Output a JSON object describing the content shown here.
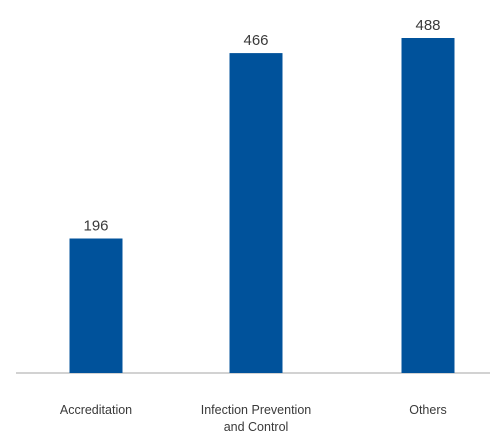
{
  "chart_data": {
    "type": "bar",
    "categories": [
      "Accreditation",
      "Infection Prevention and Control",
      "Others"
    ],
    "category_lines": [
      [
        "Accreditation"
      ],
      [
        "Infection Prevention",
        "and Control"
      ],
      [
        "Others"
      ]
    ],
    "values": [
      196,
      466,
      488
    ],
    "data_labels": [
      "196",
      "466",
      "488"
    ],
    "title": "",
    "xlabel": "",
    "ylabel": "",
    "ylim": [
      0,
      488
    ],
    "grid": false,
    "legend": "none",
    "bar_color": "#00529b",
    "axis_color": "#a6a6a6",
    "text_color": "#3a3a3a"
  }
}
